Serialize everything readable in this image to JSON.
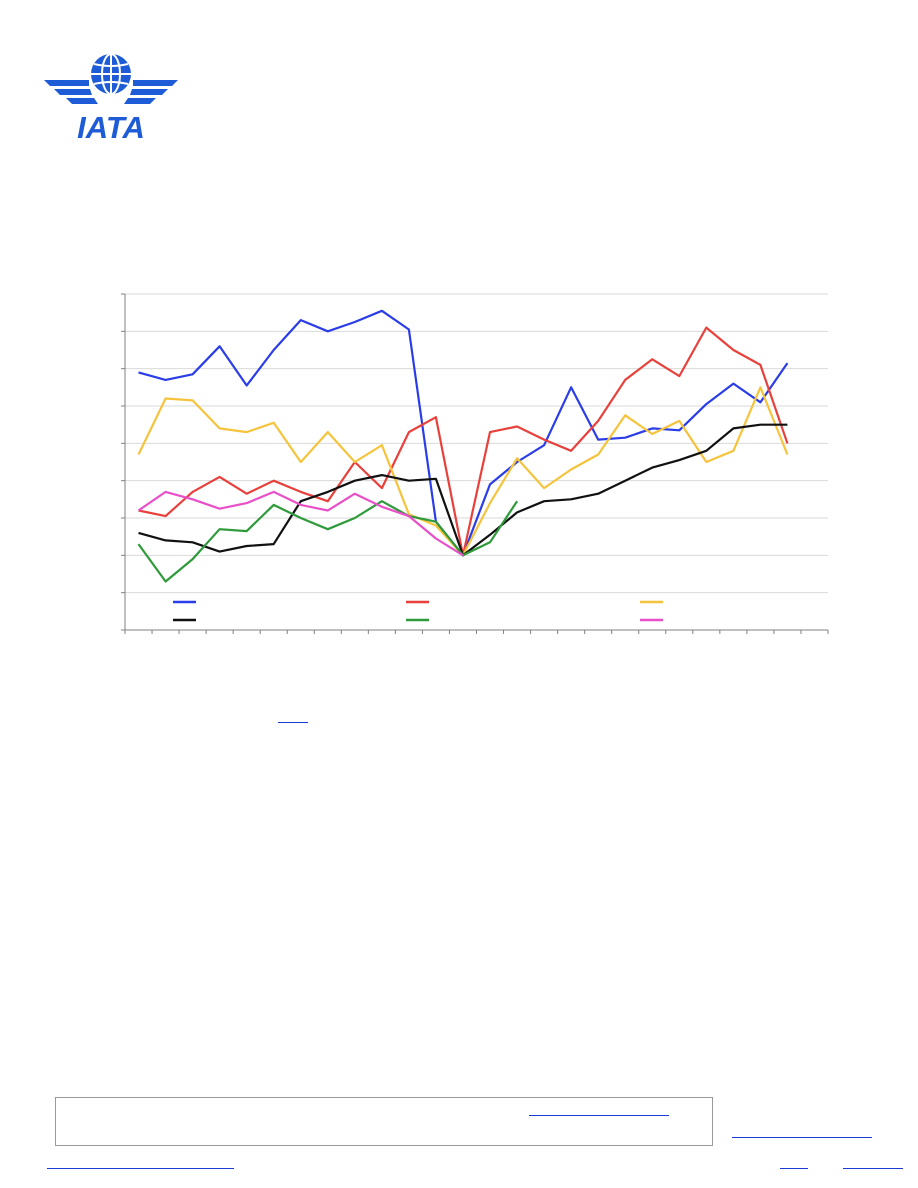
{
  "logo": {
    "name": "iata-logo",
    "text": "IATA",
    "colors": {
      "primary": "#1e5bd6"
    }
  },
  "chart_data": {
    "type": "line",
    "title": "",
    "xlabel": "",
    "ylabel": "",
    "grid": true,
    "x": [
      1,
      2,
      3,
      4,
      5,
      6,
      7,
      8,
      9,
      10,
      11,
      12,
      13,
      14,
      15,
      16,
      17,
      18,
      19,
      20,
      21,
      22,
      23,
      24,
      25,
      26
    ],
    "ylim": [
      0,
      9
    ],
    "legend": {
      "placement": "bottom-left",
      "columns": 3
    },
    "series": [
      {
        "color": "#2a3de8",
        "values": [
          6.9,
          6.7,
          6.85,
          7.6,
          6.55,
          7.5,
          8.3,
          8.0,
          8.25,
          8.55,
          8.05,
          2.9,
          2.0,
          3.9,
          4.5,
          4.95,
          6.5,
          5.1,
          5.15,
          5.4,
          5.35,
          6.05,
          6.6,
          6.1,
          7.15,
          null
        ]
      },
      {
        "color": "#e8413c",
        "values": [
          3.2,
          3.05,
          3.7,
          4.1,
          3.65,
          4.0,
          3.7,
          3.45,
          4.5,
          3.8,
          5.3,
          5.7,
          2.0,
          5.3,
          5.45,
          5.1,
          4.8,
          5.6,
          6.7,
          7.25,
          6.8,
          8.1,
          7.5,
          7.1,
          5.0,
          null
        ]
      },
      {
        "color": "#f5c43c",
        "values": [
          4.7,
          6.2,
          6.15,
          5.4,
          5.3,
          5.55,
          4.5,
          5.3,
          4.5,
          4.95,
          3.1,
          2.8,
          2.0,
          3.4,
          4.6,
          3.8,
          4.3,
          4.7,
          5.75,
          5.25,
          5.6,
          4.5,
          4.8,
          6.5,
          4.7,
          null
        ]
      },
      {
        "color": "#111111",
        "values": [
          2.6,
          2.4,
          2.35,
          2.1,
          2.25,
          2.3,
          3.45,
          3.7,
          4.0,
          4.15,
          4.0,
          4.05,
          2.0,
          2.55,
          3.15,
          3.45,
          3.5,
          3.65,
          4.0,
          4.35,
          4.55,
          4.8,
          5.4,
          5.5,
          5.5,
          null
        ]
      },
      {
        "color": "#2e9a3a",
        "values": [
          2.3,
          1.3,
          1.9,
          2.7,
          2.65,
          3.35,
          3.0,
          2.7,
          3.0,
          3.45,
          3.05,
          2.9,
          2.0,
          2.35,
          3.45,
          null,
          null,
          null,
          null,
          null,
          null,
          null,
          null,
          null,
          null,
          null
        ]
      },
      {
        "color": "#e84fc8",
        "values": [
          3.2,
          3.7,
          3.5,
          3.25,
          3.4,
          3.7,
          3.35,
          3.2,
          3.65,
          3.3,
          3.05,
          2.45,
          2.0,
          null,
          null,
          null,
          null,
          null,
          null,
          null,
          null,
          null,
          null,
          null,
          null,
          null
        ]
      }
    ]
  }
}
